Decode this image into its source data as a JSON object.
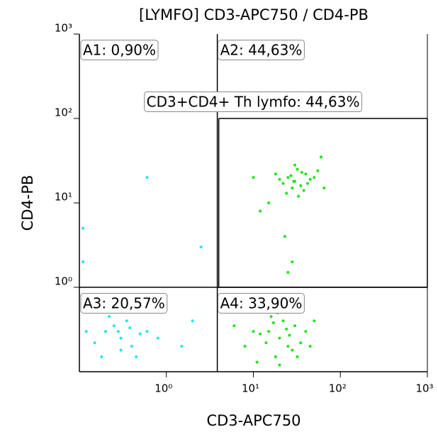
{
  "chart_data": {
    "type": "scatter",
    "title": "[LYMFO] CD3-APC750 / CD4-PB",
    "x_label": "CD3-APC750",
    "y_label": "CD4-PB",
    "log_x": true,
    "log_y": true,
    "xlim": [
      0.1,
      1000
    ],
    "ylim": [
      0.1,
      1000
    ],
    "xticks": [
      {
        "value": 1,
        "label": "10⁰"
      },
      {
        "value": 10,
        "label": "10¹"
      },
      {
        "value": 100,
        "label": "10²"
      },
      {
        "value": 1000,
        "label": "10³"
      }
    ],
    "yticks": [
      {
        "value": 1,
        "label": "10⁰"
      },
      {
        "value": 10,
        "label": "10¹"
      },
      {
        "value": 100,
        "label": "10²"
      },
      {
        "value": 1000,
        "label": "10³"
      }
    ],
    "quadrant_gate": {
      "x": 3.85,
      "y": 1
    },
    "th_gate": {
      "xlim": [
        4,
        1000
      ],
      "ylim": [
        1,
        100
      ]
    },
    "annotations": [
      "A1: 0,90%",
      "A2: 44,63%",
      "A3: 20,57%",
      "A4: 33,90%",
      "CD3+CD4+ Th lymfo: 44,63%"
    ],
    "series": [
      {
        "color": "#19e619",
        "x": [
          30,
          25,
          35,
          40,
          28,
          45,
          22,
          32,
          38,
          27,
          50,
          20,
          33,
          42,
          30,
          24,
          36,
          29,
          55,
          18,
          15,
          12,
          60,
          23,
          28,
          25,
          10,
          65,
          20,
          15,
          25,
          30,
          18,
          12,
          22,
          35,
          10,
          28,
          16,
          40,
          8,
          20,
          24,
          14,
          50,
          6,
          32,
          19,
          26,
          11,
          45,
          17
        ],
        "y": [
          18,
          20,
          16,
          22,
          15,
          19,
          17,
          25,
          14,
          21,
          20,
          19,
          12,
          17,
          28,
          13,
          23,
          18,
          24,
          22,
          10,
          8,
          35,
          4,
          2,
          1.5,
          20,
          15,
          0.25,
          0.3,
          0.2,
          0.35,
          0.15,
          0.28,
          0.4,
          0.22,
          0.3,
          0.18,
          0.45,
          0.3,
          0.2,
          0.12,
          0.32,
          0.22,
          0.4,
          0.35,
          0.15,
          0.5,
          0.27,
          0.13,
          0.2,
          0.38
        ]
      },
      {
        "color": "#1ee6f0",
        "x": [
          0.3,
          0.2,
          0.4,
          0.25,
          0.15,
          0.5,
          0.35,
          0.18,
          0.3,
          0.6,
          0.22,
          0.12,
          0.45,
          0.28,
          0.8,
          0.38,
          1.5,
          2,
          0.11,
          0.11,
          0.11,
          0.6,
          2.5
        ],
        "y": [
          0.25,
          0.3,
          0.2,
          0.35,
          0.22,
          0.28,
          0.4,
          0.15,
          0.18,
          0.3,
          0.45,
          0.3,
          0.15,
          0.3,
          0.25,
          0.33,
          0.2,
          0.4,
          2,
          0.8,
          5,
          20,
          3
        ]
      }
    ]
  }
}
